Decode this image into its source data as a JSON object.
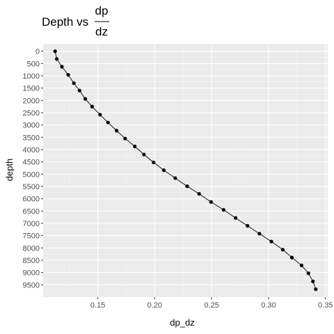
{
  "chart_data": {
    "type": "line",
    "title": {
      "prefix": "Depth vs",
      "numerator": "dp",
      "denominator": "dz"
    },
    "xlabel": "dp_dz",
    "ylabel": "depth",
    "xlim": [
      0.102,
      0.352
    ],
    "ylim": [
      -300,
      10000
    ],
    "y_reversed": true,
    "x_ticks": [
      0.15,
      0.2,
      0.25,
      0.3,
      0.35
    ],
    "x_tick_labels": [
      "0.15",
      "0.20",
      "0.25",
      "0.30",
      "0.35"
    ],
    "y_ticks": [
      0,
      500,
      1000,
      1500,
      2000,
      2500,
      3000,
      3500,
      4000,
      4500,
      5000,
      5500,
      6000,
      6500,
      7000,
      7500,
      8000,
      8500,
      9000,
      9500
    ],
    "y_tick_labels": [
      "0",
      "500",
      "1000",
      "1500",
      "2000",
      "2500",
      "3000",
      "3500",
      "4000",
      "4500",
      "5000",
      "5500",
      "6000",
      "6500",
      "7000",
      "7500",
      "8000",
      "8500",
      "9000",
      "9500"
    ],
    "grid": true,
    "series": [
      {
        "marker": "point",
        "line": true,
        "points": [
          {
            "x": 0.1125,
            "y": 0
          },
          {
            "x": 0.114,
            "y": 315
          },
          {
            "x": 0.1185,
            "y": 630
          },
          {
            "x": 0.124,
            "y": 960
          },
          {
            "x": 0.129,
            "y": 1300
          },
          {
            "x": 0.134,
            "y": 1600
          },
          {
            "x": 0.139,
            "y": 1940
          },
          {
            "x": 0.145,
            "y": 2250
          },
          {
            "x": 0.152,
            "y": 2580
          },
          {
            "x": 0.159,
            "y": 2900
          },
          {
            "x": 0.1665,
            "y": 3230
          },
          {
            "x": 0.174,
            "y": 3550
          },
          {
            "x": 0.1825,
            "y": 3870
          },
          {
            "x": 0.1905,
            "y": 4200
          },
          {
            "x": 0.199,
            "y": 4520
          },
          {
            "x": 0.208,
            "y": 4840
          },
          {
            "x": 0.218,
            "y": 5160
          },
          {
            "x": 0.2285,
            "y": 5490
          },
          {
            "x": 0.239,
            "y": 5800
          },
          {
            "x": 0.2495,
            "y": 6130
          },
          {
            "x": 0.2605,
            "y": 6450
          },
          {
            "x": 0.271,
            "y": 6780
          },
          {
            "x": 0.2815,
            "y": 7100
          },
          {
            "x": 0.292,
            "y": 7420
          },
          {
            "x": 0.3025,
            "y": 7740
          },
          {
            "x": 0.3125,
            "y": 8070
          },
          {
            "x": 0.3205,
            "y": 8390
          },
          {
            "x": 0.329,
            "y": 8710
          },
          {
            "x": 0.335,
            "y": 9030
          },
          {
            "x": 0.339,
            "y": 9360
          },
          {
            "x": 0.3415,
            "y": 9680
          }
        ]
      }
    ],
    "colors": {
      "panel": "#ebebeb",
      "grid_major": "#ffffff",
      "grid_minor": "#f5f5f5",
      "series": "#000000",
      "tick": "#333333"
    }
  }
}
